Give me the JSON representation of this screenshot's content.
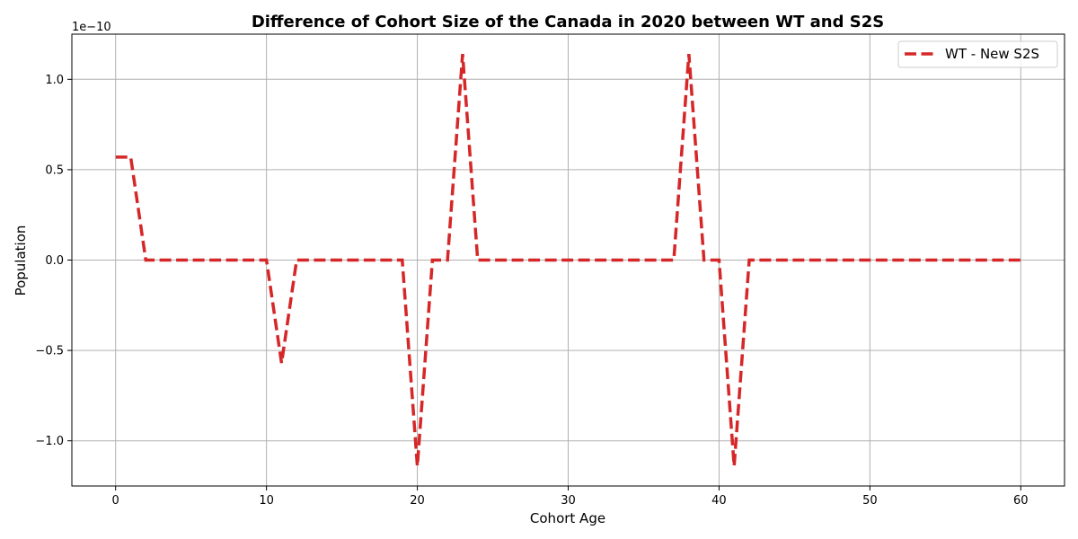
{
  "chart_data": {
    "type": "line",
    "title": "Difference of Cohort Size of the Canada in 2020 between WT and S2S",
    "xlabel": "Cohort Age",
    "ylabel": "Population",
    "y_offset_label": "1e−10",
    "xlim": [
      -2.9,
      62.9
    ],
    "ylim": [
      -1.25,
      1.25
    ],
    "x_ticks": [
      0,
      10,
      20,
      30,
      40,
      50,
      60
    ],
    "y_ticks": [
      -1.0,
      -0.5,
      0.0,
      0.5,
      1.0
    ],
    "y_tick_labels": [
      "−1.0",
      "−0.5",
      "0.0",
      "0.5",
      "1.0"
    ],
    "grid": true,
    "legend_position": "top-right",
    "series": [
      {
        "name": "WT - New S2S",
        "color": "#d62728",
        "style": "dashed",
        "x": [
          0,
          1,
          2,
          3,
          4,
          5,
          6,
          7,
          8,
          9,
          10,
          11,
          12,
          13,
          14,
          15,
          16,
          17,
          18,
          19,
          20,
          21,
          22,
          23,
          24,
          25,
          26,
          27,
          28,
          29,
          30,
          31,
          32,
          33,
          34,
          35,
          36,
          37,
          38,
          39,
          40,
          41,
          42,
          43,
          44,
          45,
          46,
          47,
          48,
          49,
          50,
          51,
          52,
          53,
          54,
          55,
          56,
          57,
          58,
          59,
          60
        ],
        "y": [
          0.57,
          0.57,
          0,
          0,
          0,
          0,
          0,
          0,
          0,
          0,
          0,
          -0.57,
          0,
          0,
          0,
          0,
          0,
          0,
          0,
          0,
          -1.14,
          0,
          0,
          1.14,
          0,
          0,
          0,
          0,
          0,
          0,
          0,
          0,
          0,
          0,
          0,
          0,
          0,
          0,
          1.14,
          0,
          0,
          -1.14,
          0,
          0,
          0,
          0,
          0,
          0,
          0,
          0,
          0,
          0,
          0,
          0,
          0,
          0,
          0,
          0,
          0,
          0,
          0
        ]
      }
    ]
  }
}
